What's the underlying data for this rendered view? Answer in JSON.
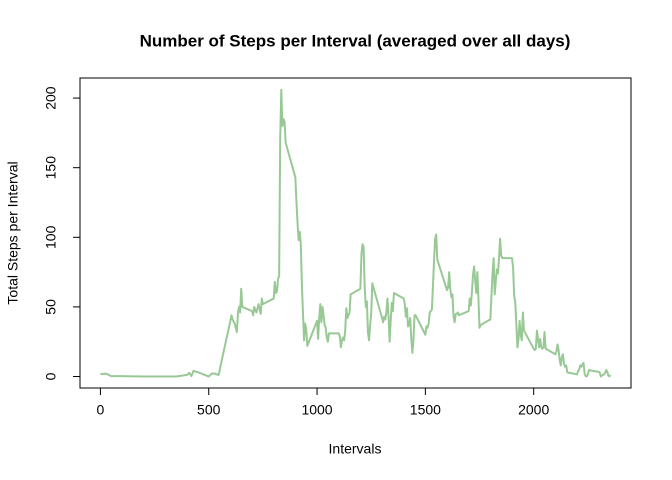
{
  "chart_data": {
    "type": "line",
    "title": "Number of Steps per Interval (averaged over all days)",
    "x_label": "Intervals",
    "y_label": "Total Steps per Interval",
    "color": "#98c995",
    "x": [
      0,
      25,
      50,
      100,
      200,
      300,
      350,
      400,
      410,
      420,
      430,
      440,
      450,
      500,
      515,
      530,
      545,
      550,
      555,
      600,
      605,
      610,
      620,
      630,
      635,
      640,
      645,
      650,
      655,
      700,
      705,
      710,
      715,
      720,
      730,
      740,
      745,
      750,
      800,
      805,
      810,
      815,
      820,
      825,
      830,
      835,
      840,
      845,
      850,
      855,
      900,
      905,
      910,
      915,
      920,
      925,
      930,
      935,
      940,
      945,
      950,
      955,
      1000,
      1005,
      1010,
      1015,
      1020,
      1025,
      1030,
      1035,
      1040,
      1045,
      1050,
      1055,
      1100,
      1105,
      1110,
      1115,
      1120,
      1125,
      1130,
      1135,
      1140,
      1145,
      1150,
      1155,
      1200,
      1205,
      1210,
      1215,
      1220,
      1225,
      1230,
      1235,
      1240,
      1245,
      1250,
      1255,
      1300,
      1305,
      1310,
      1315,
      1320,
      1325,
      1330,
      1335,
      1340,
      1345,
      1350,
      1355,
      1400,
      1405,
      1410,
      1415,
      1420,
      1425,
      1430,
      1435,
      1440,
      1445,
      1450,
      1455,
      1500,
      1505,
      1510,
      1515,
      1520,
      1525,
      1530,
      1535,
      1540,
      1545,
      1550,
      1555,
      1600,
      1605,
      1610,
      1615,
      1620,
      1625,
      1630,
      1635,
      1640,
      1645,
      1650,
      1655,
      1700,
      1705,
      1710,
      1715,
      1720,
      1725,
      1730,
      1735,
      1740,
      1745,
      1750,
      1755,
      1800,
      1805,
      1810,
      1815,
      1820,
      1825,
      1830,
      1835,
      1840,
      1845,
      1850,
      1855,
      1900,
      1905,
      1910,
      1915,
      1920,
      1925,
      1930,
      1935,
      1940,
      1945,
      1950,
      1955,
      2000,
      2005,
      2010,
      2015,
      2020,
      2025,
      2030,
      2035,
      2040,
      2045,
      2050,
      2055,
      2100,
      2105,
      2110,
      2115,
      2120,
      2125,
      2130,
      2135,
      2140,
      2145,
      2150,
      2155,
      2200,
      2205,
      2210,
      2215,
      2220,
      2225,
      2230,
      2235,
      2240,
      2245,
      2250,
      2255,
      2300,
      2305,
      2310,
      2315,
      2320,
      2325,
      2330,
      2335,
      2340,
      2345,
      2350,
      2355
    ],
    "values": [
      1.7,
      2.1,
      0.3,
      0.3,
      0,
      0,
      0,
      1.2,
      2.6,
      0.3,
      4.1,
      3.5,
      3.1,
      0,
      2.2,
      2.1,
      1,
      3.8,
      8,
      40,
      44,
      41,
      38,
      32,
      46,
      50,
      46,
      63,
      50,
      47,
      44,
      50,
      48,
      46,
      52,
      45,
      56,
      52,
      56,
      68,
      60,
      61,
      70,
      72,
      172,
      206,
      180,
      185,
      183,
      168,
      143,
      125,
      110,
      98,
      104,
      95,
      66,
      46,
      26,
      38,
      34,
      22,
      40,
      27,
      42,
      52,
      39,
      50,
      44,
      37,
      35,
      28,
      25,
      31,
      31,
      29,
      21,
      26,
      28,
      26,
      33,
      49,
      42,
      44,
      46,
      59,
      63,
      88,
      95,
      93,
      64,
      50,
      54,
      32,
      26,
      37,
      45,
      67,
      42,
      39,
      43,
      41,
      46,
      56,
      43,
      25,
      40,
      53,
      47,
      60,
      56,
      52,
      43,
      49,
      36,
      37,
      42,
      27,
      17,
      26,
      44,
      44,
      30,
      36,
      35,
      38,
      46,
      47,
      48,
      65,
      83,
      99,
      102,
      84,
      62,
      64,
      75,
      63,
      57,
      59,
      43,
      39,
      45,
      45,
      46,
      44,
      47,
      56,
      51,
      61,
      73,
      79,
      69,
      60,
      75,
      56,
      35,
      37,
      41,
      58,
      74,
      85,
      59,
      68,
      77,
      74,
      85,
      99,
      87,
      85,
      85,
      78,
      58,
      53,
      37,
      21,
      27,
      40,
      30,
      26,
      46,
      33,
      20,
      19,
      20,
      33,
      27,
      21,
      27,
      21,
      20,
      21,
      32,
      20,
      16,
      18,
      23,
      19,
      12,
      8,
      14,
      16,
      9,
      7,
      8,
      3,
      1.5,
      4,
      5,
      8,
      7,
      8.7,
      9.8,
      2.2,
      0.3,
      0.1,
      1.6,
      4.6,
      3.3,
      2.8,
      0,
      0.8,
      1,
      1.6,
      2.6,
      4.7,
      3.3,
      0.6,
      0.2,
      1.1
    ],
    "xlim": [
      -94.2,
      2449.2
    ],
    "ylim": [
      -8.25,
      214.42
    ],
    "xticks": [
      0,
      500,
      1000,
      1500,
      2000
    ],
    "yticks": [
      0,
      50,
      100,
      150,
      200
    ]
  }
}
